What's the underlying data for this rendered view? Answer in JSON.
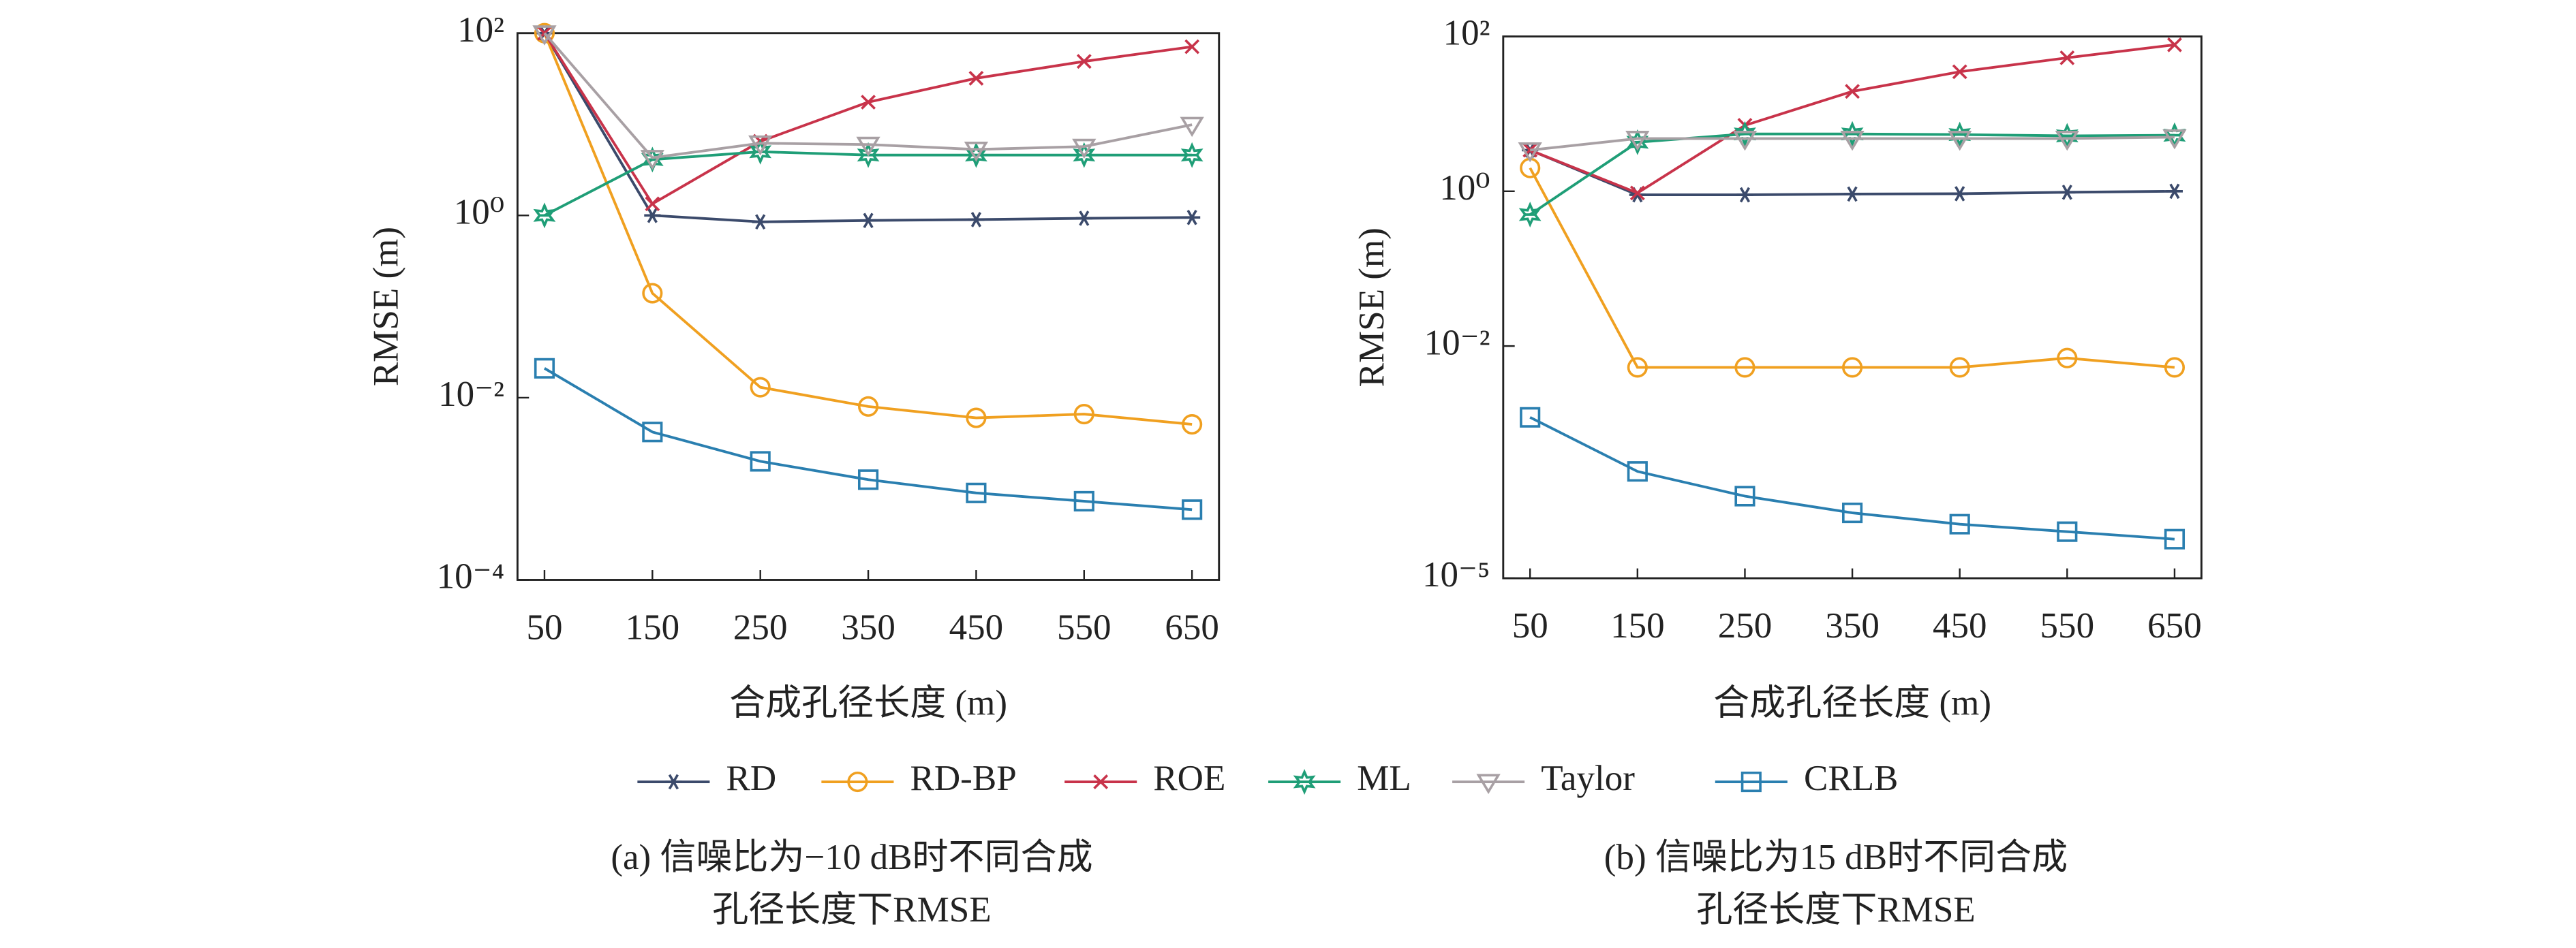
{
  "chart_data": [
    {
      "type": "line",
      "log_y": true,
      "x_label": "合成孔径长度 (m)",
      "y_label": "RMSE (m)",
      "caption": [
        "(a) 信噪比为−10 dB时不同合成",
        "孔径长度下RMSE"
      ],
      "x": [
        50,
        150,
        250,
        350,
        450,
        550,
        650
      ],
      "xlim": [
        25,
        675
      ],
      "xticks": [
        50,
        150,
        250,
        350,
        450,
        550,
        650
      ],
      "ylim": [
        0.0001,
        100
      ],
      "yticks": [
        {
          "value": 100,
          "label": "10²"
        },
        {
          "value": 1,
          "label": "10⁰"
        },
        {
          "value": 0.01,
          "label": "10⁻²"
        },
        {
          "value": 0.0001,
          "label": "10⁻⁴"
        }
      ],
      "series": [
        {
          "name": "RD",
          "color": "#3b4a6b",
          "marker": "star",
          "values": [
            100,
            1.0,
            0.85,
            0.88,
            0.9,
            0.93,
            0.95
          ]
        },
        {
          "name": "RD-BP",
          "color": "#f0a020",
          "marker": "circle",
          "values": [
            100,
            0.14,
            0.013,
            0.008,
            0.006,
            0.0066,
            0.0051
          ]
        },
        {
          "name": "ROE",
          "color": "#c8334a",
          "marker": "x",
          "values": [
            100,
            1.34,
            6.5,
            17.5,
            32,
            49,
            71
          ]
        },
        {
          "name": "ML",
          "color": "#1f9e77",
          "marker": "hexstar",
          "values": [
            1,
            4.1,
            5.0,
            4.6,
            4.6,
            4.6,
            4.6
          ]
        },
        {
          "name": "Taylor",
          "color": "#a8a0a4",
          "marker": "tri",
          "values": [
            100,
            4.3,
            6.2,
            6.0,
            5.3,
            5.7,
            9.9
          ]
        },
        {
          "name": "CRLB",
          "color": "#2a7fb0",
          "marker": "square",
          "values": [
            0.021,
            0.0042,
            0.002,
            0.00126,
            0.0009,
            0.00073,
            0.00059
          ]
        }
      ]
    },
    {
      "type": "line",
      "log_y": true,
      "x_label": "合成孔径长度 (m)",
      "y_label": "RMSE (m)",
      "caption": [
        "(b) 信噪比为15 dB时不同合成",
        "孔径长度下RMSE"
      ],
      "x": [
        50,
        150,
        250,
        350,
        450,
        550,
        650
      ],
      "xlim": [
        25,
        675
      ],
      "xticks": [
        50,
        150,
        250,
        350,
        450,
        550,
        650
      ],
      "ylim": [
        1e-05,
        100
      ],
      "yticks": [
        {
          "value": 100,
          "label": "10²"
        },
        {
          "value": 1,
          "label": "10⁰"
        },
        {
          "value": 0.01,
          "label": "10⁻²"
        },
        {
          "value": 1e-05,
          "label": "10⁻⁵"
        }
      ],
      "series": [
        {
          "name": "RD",
          "color": "#3b4a6b",
          "marker": "star",
          "values": [
            3.4,
            0.9,
            0.9,
            0.92,
            0.93,
            0.97,
            1.0
          ]
        },
        {
          "name": "RD-BP",
          "color": "#f0a020",
          "marker": "circle",
          "values": [
            2.0,
            0.0053,
            0.0053,
            0.0053,
            0.0053,
            0.007,
            0.0053
          ]
        },
        {
          "name": "ROE",
          "color": "#c8334a",
          "marker": "x",
          "values": [
            3.4,
            0.95,
            7.1,
            19.5,
            35,
            53,
            78
          ]
        },
        {
          "name": "ML",
          "color": "#1f9e77",
          "marker": "hexstar",
          "values": [
            0.5,
            4.3,
            5.5,
            5.5,
            5.4,
            5.2,
            5.3
          ]
        },
        {
          "name": "Taylor",
          "color": "#a8a0a4",
          "marker": "tri",
          "values": [
            3.4,
            4.8,
            4.8,
            4.8,
            4.8,
            4.8,
            5.0
          ]
        },
        {
          "name": "CRLB",
          "color": "#2a7fb0",
          "marker": "square",
          "values": [
            0.0012,
            0.00024,
            0.000115,
            7e-05,
            5e-05,
            4e-05,
            3.2e-05
          ]
        }
      ]
    }
  ]
}
